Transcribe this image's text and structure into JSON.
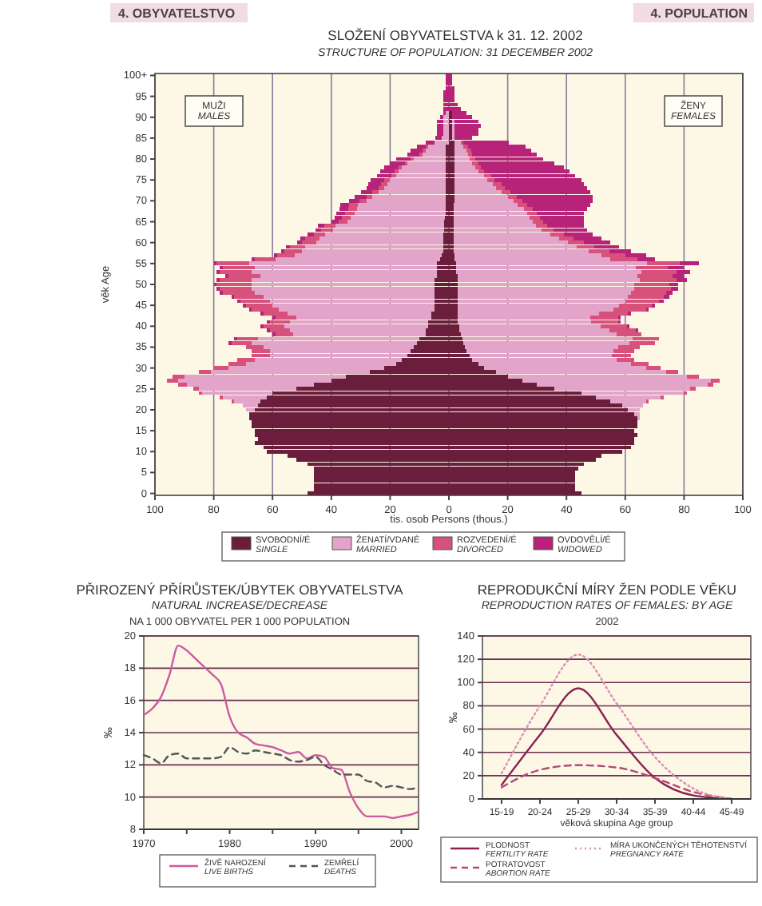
{
  "chart_data": [
    {
      "type": "bar",
      "orientation": "horizontal",
      "stacked": true,
      "title": "SLOŽENÍ OBYVATELSTVA k 31. 12. 2002",
      "subtitle": "STRUCTURE OF POPULATION: 31 DECEMBER 2002",
      "xlabel": "tis. osob     Persons (thous.)",
      "ylabel": "věk     Age",
      "annotations": [
        "4. OBYVATELSTVO",
        "4. POPULATION",
        "MUŽI\nMALES",
        "ŽENY\nFEMALES"
      ],
      "categories": [
        "100+",
        null,
        null,
        null,
        null,
        "95",
        null,
        null,
        null,
        null,
        "90",
        null,
        null,
        null,
        null,
        "85",
        null,
        null,
        null,
        null,
        "80",
        null,
        null,
        null,
        null,
        "75",
        null,
        null,
        null,
        null,
        "70",
        null,
        null,
        null,
        null,
        "65",
        null,
        null,
        null,
        null,
        "60",
        null,
        null,
        null,
        null,
        "55",
        null,
        null,
        null,
        null,
        "50",
        null,
        null,
        null,
        null,
        "45",
        null,
        null,
        null,
        null,
        "40",
        null,
        null,
        null,
        null,
        "35",
        null,
        null,
        null,
        null,
        "30",
        null,
        null,
        null,
        null,
        "25",
        null,
        null,
        null,
        null,
        "20",
        null,
        null,
        null,
        null,
        "15",
        null,
        null,
        null,
        null,
        "10",
        null,
        null,
        null,
        null,
        "5",
        null,
        null,
        null,
        null,
        "0"
      ],
      "xlim": [
        -100,
        100
      ],
      "xticks": [
        {
          "value": -100,
          "label": "100"
        },
        {
          "value": -80,
          "label": "80"
        },
        {
          "value": -60,
          "label": "60"
        },
        {
          "value": -40,
          "label": "40"
        },
        {
          "value": -20,
          "label": "20"
        },
        0,
        20,
        40,
        60,
        80,
        100
      ],
      "grid": "x",
      "legend": "bottom",
      "series": [
        {
          "name": "SVOBODNÍ/É\nSINGLE",
          "color": "#6b1d3c",
          "values": [
            0,
            0,
            0,
            0,
            0,
            0,
            0,
            0,
            0,
            0,
            0,
            0,
            0,
            0,
            0,
            0,
            0,
            -1,
            -1,
            -1,
            -1,
            -1,
            -1,
            -1,
            -1,
            -1,
            -1,
            -1,
            -1,
            -1,
            -1,
            -1,
            -1.2,
            -1.2,
            -1.3,
            -1.5,
            -1.5,
            -1.5,
            -2,
            -2,
            -2,
            -2,
            -2,
            -2.5,
            -3,
            -4,
            -4,
            -4,
            -4,
            -5,
            -5,
            -5,
            -5,
            -5,
            -5,
            -5,
            -5,
            -6,
            -6,
            -7,
            -7,
            -8,
            -8,
            -10,
            -11,
            -12,
            -13,
            -14,
            -16,
            -18,
            -22,
            -27,
            -35,
            -40,
            -46,
            -52,
            -60,
            -62,
            -64,
            -65,
            -66,
            -68,
            -68,
            -67,
            -67,
            -66,
            -66,
            -65,
            -66,
            -63,
            -62,
            -55,
            -52,
            -48,
            -46,
            -46,
            -46,
            -46,
            -46,
            -46,
            -48
          ]
        },
        {
          "name": "ŽENATÍ/VDANÉ\nMARRIED",
          "color": "#e2a4c8",
          "values": [
            0,
            0,
            0,
            0,
            0,
            0,
            0,
            0,
            0,
            -1,
            -2,
            -2,
            -2,
            -2,
            -2,
            -2.5,
            -5,
            -6,
            -7,
            -8,
            -11,
            -13,
            -15,
            -16,
            -17,
            -19,
            -20,
            -21,
            -23,
            -25,
            -27,
            -30,
            -30,
            -31,
            -32,
            -33,
            -37,
            -38,
            -40,
            -42,
            -43,
            -47,
            -48,
            -50,
            -56,
            -64,
            -62,
            -63,
            -60,
            -62,
            -62,
            -62,
            -61,
            -58,
            -56,
            -55,
            -53,
            -49,
            -46,
            -47,
            -49,
            -46,
            -45,
            -55,
            -56,
            -51,
            -48,
            -47,
            -50,
            -51,
            -53,
            -54,
            -55,
            -52,
            -43,
            -33,
            -24,
            -15,
            -9,
            -5,
            -3,
            0,
            0,
            0,
            0,
            0,
            0,
            0,
            0,
            0,
            0,
            0,
            0,
            0,
            0,
            0,
            0,
            0,
            0,
            0,
            0
          ]
        },
        {
          "name": "ROZVEDENÍ/É\nDIVORCED",
          "color": "#d8507c",
          "values": [
            0,
            0,
            0,
            0,
            0,
            0,
            0,
            0,
            0,
            0,
            0,
            0,
            0,
            0,
            0,
            0,
            0,
            -1,
            -1,
            -1,
            -1,
            -1,
            -1,
            -1.5,
            -1.5,
            -2,
            -2,
            -2,
            -2,
            -2,
            -2.5,
            -3,
            -3,
            -3,
            -3,
            -3,
            -4,
            -4,
            -4,
            -5,
            -5,
            -5,
            -6,
            -6,
            -7,
            -11,
            -11,
            -11,
            -11,
            -11,
            -12,
            -11,
            -11,
            -10,
            -10,
            -9,
            -9,
            -8,
            -7,
            -7,
            -7,
            -7,
            -6,
            -7,
            -7,
            -6,
            -6,
            -6,
            -6,
            -6,
            -5,
            -4,
            -4,
            -4,
            -3,
            -2,
            -1,
            -1,
            -1,
            0,
            0,
            0,
            0,
            0,
            0,
            0,
            0,
            0,
            0,
            0,
            0,
            0,
            0,
            0,
            0,
            0,
            0,
            0,
            0,
            0,
            0
          ]
        },
        {
          "name": "OVDOVĚLÍ/É\nWIDOWED",
          "color": "#b8237a",
          "values": [
            -1,
            -1,
            -1,
            -1,
            -2,
            -2,
            -2,
            -2,
            -2,
            -1,
            -1,
            -2,
            -2,
            -2,
            -2,
            -2,
            -3,
            -3,
            -4,
            -4,
            -5,
            -5,
            -5,
            -5,
            -5,
            -4.5,
            -4.5,
            -4,
            -4,
            -4,
            -3.5,
            -3,
            -3,
            -3,
            -2.5,
            -2.5,
            -2,
            -2,
            -2,
            -1.5,
            -1.5,
            -1.5,
            -1,
            -1,
            -1,
            -1,
            -1,
            -1,
            -1,
            -1,
            -1,
            -1,
            -1,
            -1,
            -1,
            -1,
            -1,
            -1,
            -1,
            -1,
            -1,
            -1,
            -1,
            -1,
            -1,
            0,
            0,
            0,
            0,
            0,
            0,
            0,
            0,
            0,
            0,
            0,
            0,
            0,
            0,
            0,
            0,
            0,
            0,
            0,
            0,
            0,
            0,
            0,
            0,
            0,
            0,
            0,
            0,
            0,
            0,
            0,
            0,
            0,
            0,
            0,
            0
          ]
        },
        {
          "color": "#6b1d3c",
          "values": [
            0,
            0,
            0,
            0,
            0,
            0,
            0,
            0,
            0,
            1,
            1,
            1,
            1,
            1,
            1,
            1,
            2,
            2,
            2,
            2,
            2,
            2,
            2,
            2,
            2,
            2,
            2,
            2,
            2,
            2,
            2,
            1.5,
            1.5,
            1.5,
            1.5,
            1.5,
            1.5,
            1.5,
            1.5,
            1.5,
            1.5,
            1.5,
            1.5,
            2,
            2,
            2.5,
            2.5,
            2.5,
            3,
            3,
            3,
            3,
            3,
            3,
            3,
            3,
            3,
            3,
            3,
            3,
            3.5,
            3.5,
            4,
            4.5,
            5,
            5.5,
            6,
            7,
            8,
            10,
            12,
            16,
            20,
            25,
            30,
            36,
            45,
            50,
            55,
            59,
            61,
            63,
            64,
            64,
            64,
            63,
            64,
            63,
            63,
            62,
            59,
            52,
            50,
            46,
            44,
            43,
            43,
            43,
            43,
            43,
            45
          ]
        },
        {
          "color": "#e2a4c8",
          "values": [
            0,
            0,
            0,
            0,
            0,
            0,
            0,
            0,
            0,
            0,
            0,
            1,
            1,
            1,
            1,
            1,
            2,
            3,
            4,
            4.5,
            5,
            6,
            7,
            8,
            10,
            11,
            13,
            14,
            16,
            18,
            20,
            22,
            24,
            25,
            26,
            27,
            28,
            30,
            33,
            36,
            39,
            42,
            46,
            50,
            53,
            65,
            61,
            63,
            61,
            62,
            60,
            60,
            59,
            58,
            57,
            55,
            53,
            48,
            45,
            45.5,
            48,
            51,
            53,
            58,
            56.5,
            52,
            50,
            48.5,
            49,
            52,
            55,
            58,
            61,
            64,
            58,
            46,
            35,
            22,
            12,
            7,
            4,
            2,
            1,
            0,
            0,
            0,
            0,
            0,
            0,
            0,
            0,
            0,
            0,
            0,
            0,
            0,
            0,
            0,
            0,
            0,
            0
          ]
        },
        {
          "color": "#d8507c",
          "values": [
            0,
            0,
            0,
            0,
            0,
            0,
            0,
            0,
            0,
            0,
            0,
            0,
            0,
            0,
            0,
            0,
            1,
            1.5,
            1.5,
            1.5,
            2,
            2,
            2,
            2,
            2.5,
            2.5,
            3,
            3,
            3,
            3,
            3,
            3,
            3,
            3.5,
            3.5,
            3.5,
            4,
            4,
            4.5,
            5,
            5.5,
            6,
            7,
            8,
            9,
            11,
            11,
            12,
            12,
            12.5,
            12,
            12.5,
            12,
            12,
            11.5,
            11,
            11,
            10,
            9.5,
            9,
            9,
            9,
            8.5,
            9,
            8.5,
            7.5,
            7,
            6.5,
            6,
            6,
            5,
            4,
            4,
            3,
            2,
            2,
            1,
            1,
            1,
            0,
            0,
            0,
            0,
            0,
            0,
            0,
            0,
            0,
            0,
            0,
            0,
            0,
            0,
            0,
            0,
            0,
            0,
            0,
            0,
            0,
            0
          ]
        },
        {
          "color": "#b8237a",
          "values": [
            1,
            1,
            1,
            2,
            2,
            2,
            2,
            3,
            4,
            5,
            7,
            8,
            9,
            8,
            8,
            6,
            15.5,
            19.5,
            20.5,
            22,
            23,
            26,
            28,
            29,
            28.5,
            29.5,
            28,
            28,
            27,
            26,
            24,
            21.5,
            18.5,
            16,
            15,
            14,
            12.5,
            11.5,
            10,
            9.5,
            9,
            8.5,
            7.5,
            7,
            6,
            6.5,
            5.5,
            4.5,
            4,
            3.5,
            3,
            2.5,
            2,
            2,
            1.5,
            1,
            1,
            1,
            1,
            1,
            1,
            1,
            0,
            0,
            0,
            0,
            0,
            0,
            0,
            0,
            0,
            0,
            0,
            0,
            0,
            0,
            0,
            0,
            0,
            0,
            0,
            0,
            0,
            0,
            0,
            0,
            0,
            0,
            0,
            0,
            0,
            0,
            0,
            0,
            0,
            0,
            0,
            0,
            0,
            0,
            0
          ]
        }
      ]
    },
    {
      "type": "line",
      "title": "PŘIROZENÝ PŘÍRŮSTEK/ÚBYTEK OBYVATELSTVA",
      "subtitle": "NATURAL INCREASE/DECREASE",
      "ylabel": "‰",
      "annotations": [
        "NA 1 000 OBYVATEL     PER 1 000 POPULATION"
      ],
      "x": [
        1970,
        1971,
        1972,
        1973,
        1974,
        1975,
        1976,
        1977,
        1978,
        1979,
        1980,
        1981,
        1982,
        1983,
        1984,
        1985,
        1986,
        1987,
        1988,
        1989,
        1990,
        1991,
        1992,
        1993,
        1994,
        1995,
        1996,
        1997,
        1998,
        1999,
        2000,
        2001,
        2002
      ],
      "xlim": [
        1970,
        2002
      ],
      "xticks": [
        1970,
        {
          "value": 1975,
          "label": null
        },
        1980,
        {
          "value": 1985,
          "label": null
        },
        1990,
        {
          "value": 1995,
          "label": null
        },
        2000
      ],
      "ylim": [
        8,
        20
      ],
      "yticks": [
        8,
        10,
        12,
        14,
        16,
        18,
        20
      ],
      "grid": "y",
      "legend": "bottom",
      "series": [
        {
          "name": "ŽIVĚ NAROZENÍ\nLIVE BIRTHS",
          "color": "#cc5a9e",
          "line_style": "solid",
          "values": [
            15.1,
            15.5,
            16.2,
            17.6,
            19.4,
            19.1,
            18.6,
            18.1,
            17.6,
            17.0,
            15.0,
            14.0,
            13.7,
            13.3,
            13.2,
            13.1,
            12.9,
            12.7,
            12.8,
            12.4,
            12.6,
            12.5,
            11.8,
            11.7,
            10.3,
            9.3,
            8.8,
            8.8,
            8.8,
            8.7,
            8.8,
            8.9,
            9.1
          ]
        },
        {
          "name": "ZEMŘELÍ\nDEATHS",
          "color": "#555555",
          "line_style": "dashed",
          "values": [
            12.6,
            12.4,
            12.1,
            12.6,
            12.7,
            12.4,
            12.4,
            12.4,
            12.4,
            12.5,
            13.1,
            12.8,
            12.7,
            12.9,
            12.8,
            12.7,
            12.6,
            12.3,
            12.2,
            12.3,
            12.5,
            12.0,
            11.7,
            11.4,
            11.4,
            11.4,
            11.0,
            10.9,
            10.6,
            10.7,
            10.6,
            10.5,
            10.6
          ]
        }
      ]
    },
    {
      "type": "line",
      "title": "REPRODUKČNÍ MÍRY ŽEN PODLE VĚKU",
      "subtitle": "REPRODUCTION RATES OF FEMALES: BY AGE",
      "ylabel": "‰",
      "xlabel": "věková skupina     Age group",
      "annotations": [
        "2002"
      ],
      "categories": [
        "15-19",
        "20-24",
        "25-29",
        "30-34",
        "35-39",
        "40-44",
        "45-49"
      ],
      "ylim": [
        0,
        140
      ],
      "yticks": [
        0,
        20,
        40,
        60,
        80,
        100,
        120,
        140
      ],
      "grid": "y",
      "legend": "bottom",
      "series": [
        {
          "name": "PLODNOST\nFERTILITY RATE",
          "color": "#8b2252",
          "line_style": "solid",
          "values": [
            12,
            55,
            95,
            55,
            18,
            3,
            0
          ]
        },
        {
          "name": "POTRATOVOST\nABORTION RATE",
          "color": "#b04a78",
          "line_style": "dashed",
          "values": [
            10,
            25,
            29,
            27,
            18,
            6,
            0
          ]
        },
        {
          "name": "MÍRA UKONČENÝCH TĚHOTENSTVÍ\nPREGNANCY RATE",
          "color": "#d98fb5",
          "line_style": "dotted",
          "values": [
            22,
            80,
            124,
            82,
            36,
            9,
            0
          ]
        }
      ]
    }
  ]
}
